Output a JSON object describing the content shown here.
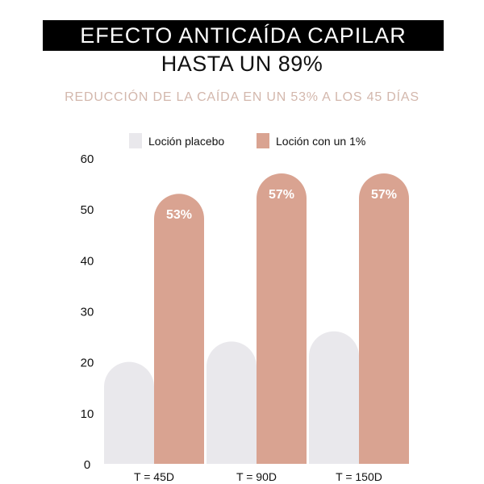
{
  "header": {
    "title": "EFECTO ANTICAÍDA CAPILAR",
    "subtitle": "HASTA UN 89%",
    "tagline": "REDUCCIÓN DE LA CAÍDA EN UN 53% A LOS 45 DÍAS"
  },
  "colors": {
    "placebo": "#e9e8ec",
    "lotion": "#d9a391",
    "bar_label": "#ffffff"
  },
  "chart_data": {
    "type": "bar",
    "categories": [
      "T = 45D",
      "T = 90D",
      "T = 150D"
    ],
    "series": [
      {
        "name": "Loción placebo",
        "values": [
          20,
          24,
          26
        ],
        "labels": [
          null,
          null,
          null
        ]
      },
      {
        "name": "Loción con un 1%",
        "values": [
          53,
          57,
          57
        ],
        "labels": [
          "53%",
          "57%",
          "57%"
        ]
      }
    ],
    "yticks": [
      0,
      10,
      20,
      30,
      40,
      50,
      60
    ],
    "ylim": [
      0,
      60
    ],
    "legend": "top-center",
    "grid": false
  }
}
